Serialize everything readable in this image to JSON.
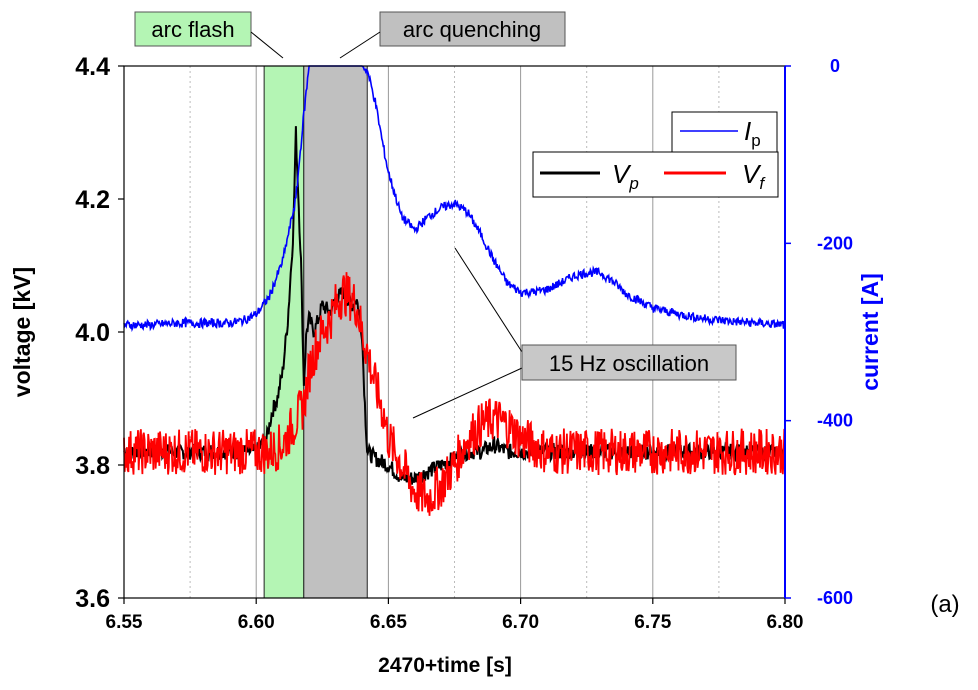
{
  "chart_data": {
    "type": "line",
    "xlabel": "2470+time [s]",
    "ylabel_left": "voltage [kV]",
    "ylabel_right": "current [A]",
    "xlim": [
      6.55,
      6.8
    ],
    "ylim_left": [
      3.6,
      4.4
    ],
    "ylim_right": [
      -600,
      0
    ],
    "x_ticks": [
      "6.55",
      "6.60",
      "6.65",
      "6.70",
      "6.75",
      "6.80"
    ],
    "y_left_ticks": [
      "3.6",
      "3.8",
      "4.0",
      "4.2",
      "4.4"
    ],
    "y_right_ticks": [
      "-600",
      "-400",
      "-200",
      "0"
    ],
    "grid": true,
    "panel_label": "(a)",
    "regions": [
      {
        "label": "arc flash",
        "x_start": 6.603,
        "x_end": 6.618,
        "color": "#b4f5b4"
      },
      {
        "label": "arc quenching",
        "x_start": 6.618,
        "x_end": 6.642,
        "color": "#c0c0c0"
      }
    ],
    "annotations": [
      {
        "text": "15 Hz oscillation"
      }
    ],
    "legends": [
      {
        "entries": [
          {
            "name": "I",
            "sub": "p"
          }
        ],
        "placement": "top-right"
      },
      {
        "entries": [
          {
            "name": "V",
            "sub": "p"
          },
          {
            "name": "V",
            "sub": "f"
          }
        ],
        "placement": "upper-right"
      }
    ],
    "series": [
      {
        "name": "Vp",
        "axis": "left",
        "color": "#000000",
        "x": [
          6.55,
          6.56,
          6.57,
          6.58,
          6.59,
          6.6,
          6.604,
          6.606,
          6.608,
          6.61,
          6.612,
          6.614,
          6.615,
          6.616,
          6.617,
          6.618,
          6.619,
          6.62,
          6.622,
          6.625,
          6.628,
          6.63,
          6.633,
          6.636,
          6.638,
          6.64,
          6.641,
          6.642,
          6.645,
          6.65,
          6.655,
          6.66,
          6.665,
          6.67,
          6.675,
          6.68,
          6.685,
          6.69,
          6.695,
          6.7,
          6.705,
          6.71,
          6.72,
          6.73,
          6.74,
          6.75,
          6.76,
          6.77,
          6.78,
          6.79,
          6.8
        ],
        "y": [
          3.82,
          3.82,
          3.82,
          3.82,
          3.82,
          3.82,
          3.84,
          3.88,
          3.9,
          3.94,
          4.02,
          4.15,
          4.3,
          4.2,
          4.1,
          3.92,
          4.0,
          4.02,
          4.0,
          4.04,
          4.03,
          4.05,
          4.06,
          4.04,
          4.05,
          4.0,
          3.9,
          3.82,
          3.81,
          3.8,
          3.78,
          3.78,
          3.79,
          3.8,
          3.81,
          3.82,
          3.82,
          3.83,
          3.82,
          3.82,
          3.82,
          3.82,
          3.82,
          3.82,
          3.82,
          3.82,
          3.82,
          3.82,
          3.82,
          3.82,
          3.82
        ]
      },
      {
        "name": "Vf",
        "axis": "left",
        "color": "#ff0000",
        "x": [
          6.55,
          6.56,
          6.57,
          6.58,
          6.59,
          6.6,
          6.605,
          6.61,
          6.614,
          6.618,
          6.62,
          6.622,
          6.625,
          6.628,
          6.63,
          6.633,
          6.636,
          6.638,
          6.64,
          6.642,
          6.645,
          6.648,
          6.65,
          6.655,
          6.66,
          6.665,
          6.67,
          6.675,
          6.68,
          6.685,
          6.69,
          6.695,
          6.7,
          6.705,
          6.71,
          6.72,
          6.73,
          6.74,
          6.75,
          6.76,
          6.77,
          6.78,
          6.79,
          6.8
        ],
        "y": [
          3.82,
          3.82,
          3.82,
          3.82,
          3.82,
          3.82,
          3.82,
          3.83,
          3.86,
          3.89,
          3.94,
          3.97,
          4.0,
          4.02,
          4.04,
          4.06,
          4.05,
          4.04,
          4.0,
          3.97,
          3.92,
          3.88,
          3.84,
          3.8,
          3.76,
          3.75,
          3.77,
          3.8,
          3.84,
          3.86,
          3.87,
          3.86,
          3.84,
          3.83,
          3.82,
          3.82,
          3.82,
          3.82,
          3.82,
          3.82,
          3.82,
          3.82,
          3.82,
          3.82
        ]
      },
      {
        "name": "Ip",
        "axis": "right",
        "color": "#0000ff",
        "x": [
          6.55,
          6.56,
          6.57,
          6.58,
          6.59,
          6.595,
          6.6,
          6.605,
          6.61,
          6.615,
          6.618,
          6.62,
          6.625,
          6.63,
          6.635,
          6.64,
          6.642,
          6.645,
          6.648,
          6.65,
          6.655,
          6.66,
          6.665,
          6.67,
          6.675,
          6.68,
          6.685,
          6.69,
          6.695,
          6.7,
          6.705,
          6.71,
          6.715,
          6.72,
          6.725,
          6.73,
          6.735,
          6.74,
          6.745,
          6.75,
          6.76,
          6.77,
          6.78,
          6.79,
          6.8
        ],
        "y": [
          -292,
          -292,
          -290,
          -290,
          -290,
          -287,
          -280,
          -260,
          -220,
          -150,
          -55,
          0,
          0,
          0,
          0,
          0,
          -5,
          -40,
          -90,
          -120,
          -170,
          -185,
          -170,
          -160,
          -155,
          -165,
          -190,
          -220,
          -245,
          -255,
          -255,
          -252,
          -245,
          -237,
          -233,
          -233,
          -243,
          -257,
          -265,
          -273,
          -280,
          -285,
          -288,
          -290,
          -292
        ]
      }
    ]
  }
}
